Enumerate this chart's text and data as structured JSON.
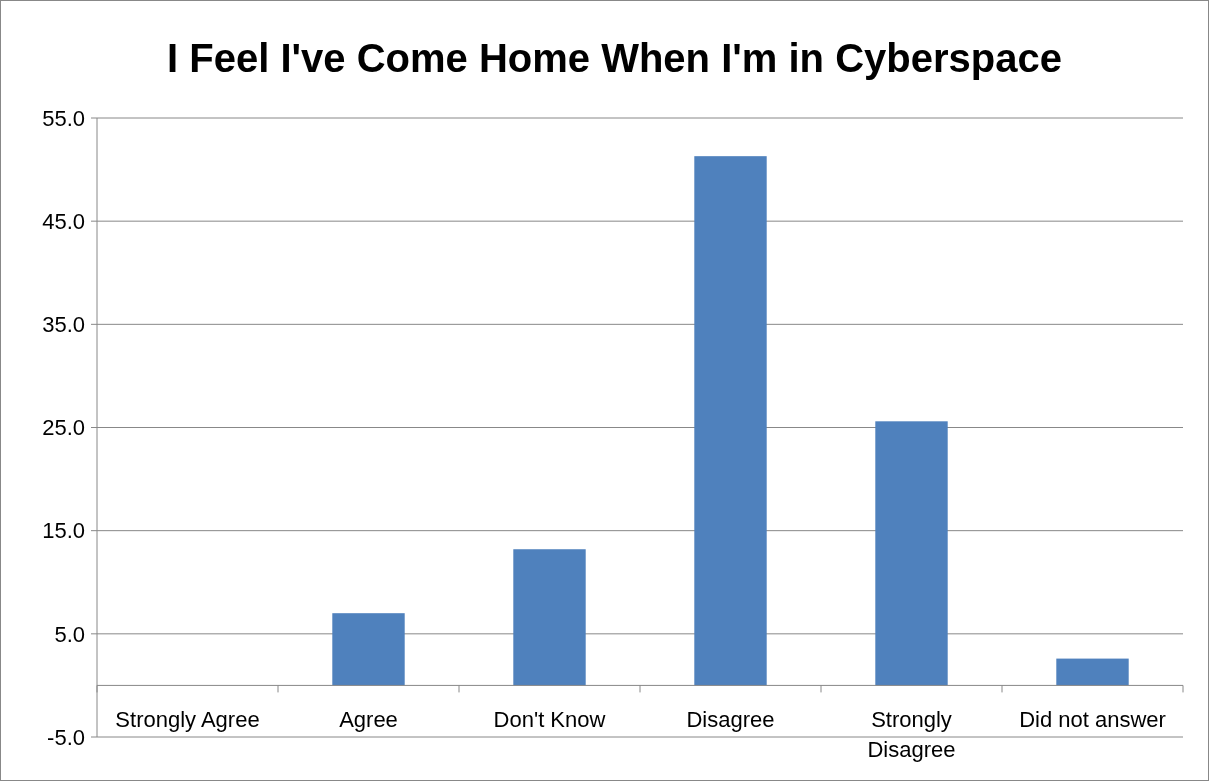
{
  "chart_data": {
    "type": "bar",
    "title": "I Feel I've Come Home When I'm in Cyberspace",
    "categories": [
      "Strongly Agree",
      "Agree",
      "Don't Know",
      "Disagree",
      "Strongly Disagree",
      "Did not answer"
    ],
    "values": [
      0,
      7.0,
      13.2,
      51.3,
      25.6,
      2.6
    ],
    "color": "#4f81bd",
    "ylim": [
      -5,
      55
    ],
    "yticks": [
      {
        "value": -5,
        "label": "-5.0"
      },
      {
        "value": 5,
        "label": "5.0"
      },
      {
        "value": 15,
        "label": "15.0"
      },
      {
        "value": 25,
        "label": "25.0"
      },
      {
        "value": 35,
        "label": "35.0"
      },
      {
        "value": 45,
        "label": "45.0"
      },
      {
        "value": 55,
        "label": "55.0"
      }
    ],
    "grid": "y"
  }
}
